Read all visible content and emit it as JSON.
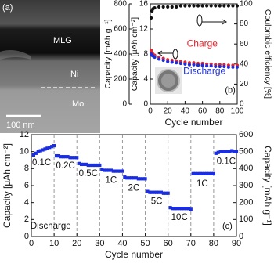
{
  "micrograph": {
    "panel": "(a)",
    "layers": [
      "MLG",
      "Ni",
      "Mo"
    ],
    "scale_bar": "100 nm"
  },
  "chart_data": [
    {
      "type": "scatter",
      "panel": "(b)",
      "xlabel": "Cycle number",
      "ylabel": "Capacity [μAh cm⁻²]",
      "y2label": "Coulombic efficiency [%]",
      "y3label": "Capacity [mAh g⁻¹]",
      "x": [
        1,
        2,
        3,
        5,
        10,
        15,
        20,
        25,
        30,
        35,
        40,
        45,
        50,
        55,
        60,
        65,
        70,
        75,
        80,
        85,
        90,
        95,
        100
      ],
      "series": [
        {
          "name": "Charge",
          "color": "#e8232a",
          "axis": "y",
          "values": [
            8.6,
            8.2,
            8.0,
            7.8,
            7.5,
            7.3,
            7.1,
            7.0,
            6.9,
            6.8,
            6.7,
            6.6,
            6.6,
            6.5,
            6.5,
            6.4,
            6.4,
            6.3,
            6.3,
            6.3,
            6.2,
            6.2,
            6.2
          ]
        },
        {
          "name": "Discharge",
          "color": "#1a2ee0",
          "axis": "y",
          "values": [
            8.0,
            7.8,
            7.7,
            7.5,
            7.2,
            7.0,
            6.8,
            6.7,
            6.6,
            6.5,
            6.4,
            6.3,
            6.3,
            6.2,
            6.2,
            6.1,
            6.1,
            6.0,
            6.0,
            6.0,
            5.9,
            5.9,
            5.9
          ]
        },
        {
          "color": "#111111",
          "axis": "y2",
          "values": [
            86,
            93,
            95,
            96,
            97,
            97,
            97,
            97,
            97,
            98,
            98,
            98,
            98,
            98,
            98,
            98,
            98,
            98,
            98,
            98,
            98,
            98,
            98
          ]
        }
      ],
      "xlim": [
        0,
        100
      ],
      "xticks": [
        0,
        20,
        40,
        60,
        80,
        100
      ],
      "ylim": [
        0,
        16
      ],
      "yticks": [
        0,
        4,
        8,
        12,
        16
      ],
      "y2lim": [
        0,
        100
      ],
      "y2ticks": [
        0,
        20,
        40,
        60,
        80,
        100
      ],
      "y3lim": [
        0,
        800
      ],
      "y3ticks": [
        0,
        200,
        400,
        600,
        800
      ],
      "annotations": []
    },
    {
      "type": "scatter",
      "panel": "(c)",
      "xlabel": "Cycle number",
      "ylabel": "Capacity [μAh cm⁻²]",
      "y2label": "Capacity [mAh g⁻¹]",
      "x": [
        1,
        2,
        3,
        4,
        5,
        6,
        7,
        8,
        9,
        10,
        11,
        12,
        13,
        14,
        15,
        16,
        17,
        18,
        19,
        20,
        21,
        22,
        23,
        24,
        25,
        26,
        27,
        28,
        29,
        30,
        31,
        32,
        33,
        34,
        35,
        36,
        37,
        38,
        39,
        40,
        41,
        42,
        43,
        44,
        45,
        46,
        47,
        48,
        49,
        50,
        51,
        52,
        53,
        54,
        55,
        56,
        57,
        58,
        59,
        60,
        61,
        62,
        63,
        64,
        65,
        66,
        67,
        68,
        69,
        70,
        71,
        72,
        73,
        74,
        75,
        76,
        77,
        78,
        79,
        80,
        81,
        82,
        83,
        84,
        85,
        86,
        87,
        88,
        89,
        90
      ],
      "series": [
        {
          "color": "#1a2ee0",
          "axis": "y",
          "values": [
            9.6,
            9.8,
            10.0,
            10.1,
            10.2,
            10.3,
            10.4,
            10.5,
            10.6,
            10.7,
            9.5,
            9.5,
            9.4,
            9.4,
            9.4,
            9.4,
            9.3,
            9.3,
            9.3,
            9.3,
            8.6,
            8.5,
            8.5,
            8.5,
            8.4,
            8.4,
            8.4,
            8.4,
            8.4,
            8.4,
            7.9,
            7.8,
            7.8,
            7.8,
            7.8,
            7.7,
            7.7,
            7.7,
            7.7,
            7.7,
            7.0,
            6.9,
            6.9,
            6.9,
            6.9,
            6.9,
            6.8,
            6.8,
            6.8,
            6.8,
            5.3,
            5.2,
            5.2,
            5.2,
            5.2,
            5.2,
            5.2,
            5.1,
            5.1,
            5.1,
            3.4,
            3.3,
            3.3,
            3.3,
            3.3,
            3.3,
            3.3,
            3.3,
            3.3,
            3.2,
            7.4,
            7.4,
            7.4,
            7.4,
            7.4,
            7.4,
            7.4,
            7.4,
            7.4,
            7.4,
            9.8,
            9.9,
            10.0,
            10.0,
            10.0,
            10.0,
            10.0,
            10.1,
            10.0,
            10.0
          ]
        }
      ],
      "xlim": [
        0,
        90
      ],
      "xticks": [
        0,
        10,
        20,
        30,
        40,
        50,
        60,
        70,
        80,
        90
      ],
      "ylim": [
        0,
        12
      ],
      "yticks": [
        0,
        2,
        4,
        6,
        8,
        10,
        12
      ],
      "y2lim": [
        0,
        600
      ],
      "y2ticks": [
        0,
        100,
        200,
        300,
        400,
        500,
        600
      ],
      "vlines": [
        10,
        20,
        30,
        40,
        50,
        60,
        70,
        80
      ],
      "annotations": [
        "0.1C",
        "0.2C",
        "0.5C",
        "1C",
        "2C",
        "5C",
        "10C",
        "1C",
        "0.1C",
        "Discharge"
      ]
    }
  ]
}
